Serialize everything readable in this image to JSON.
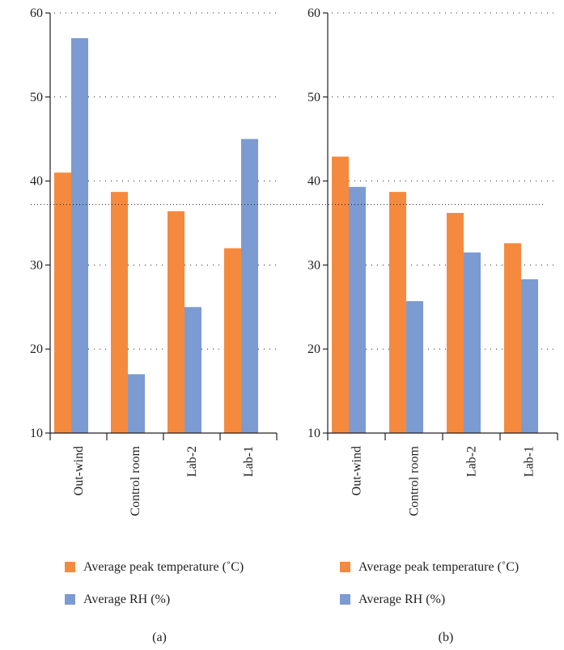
{
  "chart_data": [
    {
      "type": "bar",
      "panel_label": "(a)",
      "categories": [
        "Out-wind",
        "Control room",
        "Lab-2",
        "Lab-1"
      ],
      "series": [
        {
          "name": "Average peak temperature (˚C)",
          "values": [
            41,
            38.7,
            36.4,
            32
          ],
          "color": "#f58a3f"
        },
        {
          "name": "Average RH (%)",
          "values": [
            57,
            17,
            25,
            45
          ],
          "color": "#7b9bd2"
        }
      ],
      "ylim": [
        10,
        60
      ],
      "yticks": [
        10,
        20,
        30,
        40,
        50,
        60
      ],
      "grid": true,
      "legend_position": "bottom"
    },
    {
      "type": "bar",
      "panel_label": "(b)",
      "categories": [
        "Out-wind",
        "Control room",
        "Lab-2",
        "Lab-1"
      ],
      "series": [
        {
          "name": "Average peak temperature (˚C)",
          "values": [
            42.9,
            38.7,
            36.2,
            32.6
          ],
          "color": "#f58a3f"
        },
        {
          "name": "Average RH (%)",
          "values": [
            39.3,
            25.7,
            31.5,
            28.3
          ],
          "color": "#7b9bd2"
        }
      ],
      "ylim": [
        10,
        60
      ],
      "yticks": [
        10,
        20,
        30,
        40,
        50,
        60
      ],
      "grid": true,
      "legend_position": "bottom"
    }
  ],
  "reference_line": {
    "y": 37.2
  }
}
